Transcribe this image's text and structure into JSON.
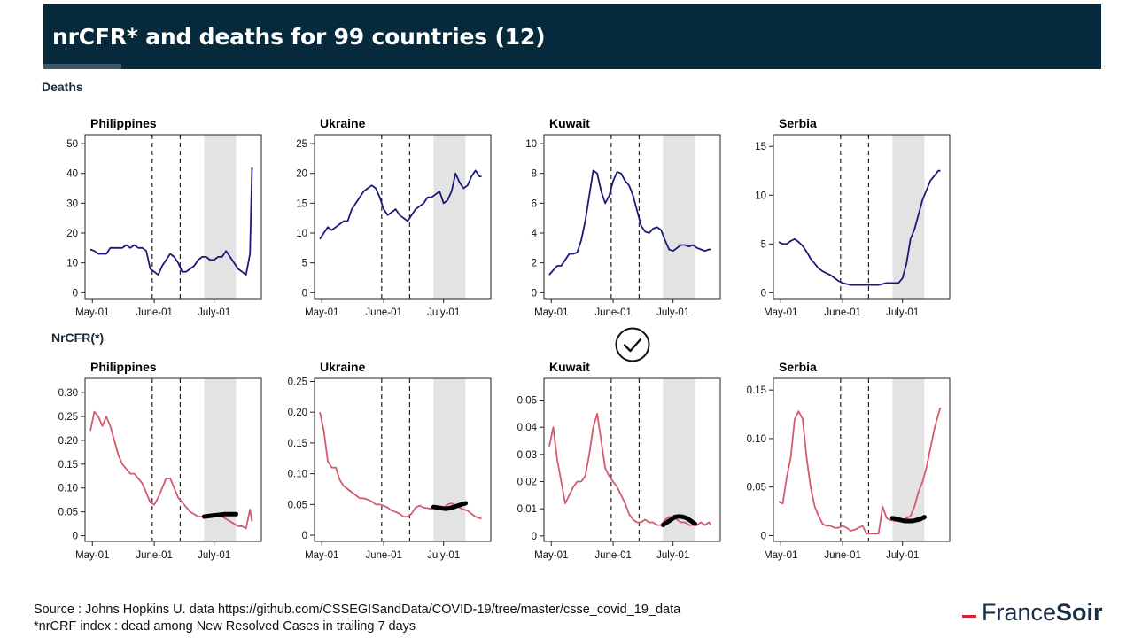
{
  "title": "nrCFR* and deaths for 99 countries (12)",
  "sections": {
    "deaths": "Deaths",
    "nrcfr": "NrCFR(*)"
  },
  "footer": {
    "source": "Source : Johns Hopkins U. data https://github.com/CSSEGISandData/COVID-19/tree/master/csse_covid_19_data",
    "note": "*nrCRF index : dead among New Resolved  Cases in trailing 7 days"
  },
  "logo": {
    "part1": "France",
    "part2": "Soir"
  },
  "checkmark": {
    "icon": "check-circle-icon",
    "position_note": "between Kuwait and Serbia rows"
  },
  "colors": {
    "deaths_line": "#1a1a7a",
    "nrcfr_line": "#d65a6e",
    "highlight": "#000000",
    "shade": "#e3e3e3",
    "banner": "#062a3c"
  },
  "chart_data": [
    {
      "type": "line",
      "panel": "deaths",
      "title": "Philippines",
      "xticks": [
        "May-01",
        "June-01",
        "July-01"
      ],
      "yticks": [
        0,
        10,
        20,
        30,
        40,
        50
      ],
      "ylim": [
        -2,
        53
      ],
      "day_range": [
        0,
        80
      ],
      "tick_days": [
        1,
        32,
        62
      ],
      "vlines": [
        31,
        45
      ],
      "shade": [
        57,
        73
      ],
      "series": [
        {
          "x": [
            0,
            2,
            4,
            6,
            8,
            10,
            12,
            14,
            16,
            18,
            20,
            22,
            24,
            26,
            28,
            30,
            32,
            34,
            36,
            38,
            40,
            42,
            44,
            46,
            48,
            50,
            52,
            54,
            56,
            58,
            60,
            62,
            64,
            66,
            68,
            70,
            72,
            74,
            76,
            78,
            80,
            81
          ],
          "y": [
            14.5,
            14,
            13,
            13,
            13,
            15,
            15,
            15,
            15,
            16,
            15,
            16,
            15,
            15,
            14,
            8,
            7,
            6,
            9,
            11,
            13,
            12,
            10,
            7,
            7,
            8,
            9,
            11,
            12,
            12,
            11,
            11,
            12,
            12,
            14,
            12,
            10,
            8,
            7,
            6,
            13,
            42
          ]
        }
      ]
    },
    {
      "type": "line",
      "panel": "deaths",
      "title": "Ukraine",
      "xticks": [
        "May-01",
        "June-01",
        "July-01"
      ],
      "yticks": [
        0,
        5,
        10,
        15,
        20,
        25
      ],
      "ylim": [
        -1,
        26.5
      ],
      "day_range": [
        0,
        80
      ],
      "tick_days": [
        1,
        32,
        62
      ],
      "vlines": [
        31,
        45
      ],
      "shade": [
        57,
        73
      ],
      "series": [
        {
          "x": [
            0,
            2,
            4,
            6,
            8,
            10,
            12,
            14,
            16,
            18,
            20,
            22,
            24,
            26,
            28,
            30,
            32,
            34,
            36,
            38,
            40,
            42,
            44,
            46,
            48,
            50,
            52,
            54,
            56,
            58,
            60,
            62,
            64,
            66,
            68,
            70,
            72,
            74,
            76,
            78,
            80,
            81
          ],
          "y": [
            9,
            10,
            11,
            10.5,
            11,
            11.5,
            12,
            12,
            14,
            15,
            16,
            17,
            17.5,
            18,
            17.5,
            16,
            14,
            13,
            13.5,
            14,
            13,
            12.5,
            12,
            13,
            14,
            14.5,
            15,
            16,
            16,
            16.5,
            17,
            15,
            15.5,
            17,
            20,
            18.5,
            17.5,
            18,
            19.5,
            20.5,
            19.5,
            19.5
          ]
        }
      ]
    },
    {
      "type": "line",
      "panel": "deaths",
      "title": "Kuwait",
      "xticks": [
        "May-01",
        "June-01",
        "July-01"
      ],
      "yticks": [
        0,
        2,
        4,
        6,
        8,
        10
      ],
      "ylim": [
        -0.4,
        10.6
      ],
      "day_range": [
        0,
        80
      ],
      "tick_days": [
        1,
        32,
        62
      ],
      "vlines": [
        31,
        45
      ],
      "shade": [
        57,
        73
      ],
      "series": [
        {
          "x": [
            0,
            2,
            4,
            6,
            8,
            10,
            12,
            14,
            16,
            18,
            20,
            22,
            24,
            26,
            28,
            30,
            32,
            34,
            36,
            38,
            40,
            42,
            44,
            46,
            48,
            50,
            52,
            54,
            56,
            58,
            60,
            62,
            64,
            66,
            68,
            70,
            72,
            74,
            76,
            78,
            80,
            81
          ],
          "y": [
            1.2,
            1.5,
            1.8,
            1.8,
            2.2,
            2.6,
            2.6,
            2.7,
            3.5,
            4.8,
            6.5,
            8.2,
            8,
            6.8,
            6,
            6.5,
            7.5,
            8.1,
            8,
            7.5,
            7.2,
            6.5,
            5.5,
            4.5,
            4.1,
            4,
            4.3,
            4.4,
            4.2,
            3.5,
            2.9,
            2.8,
            3,
            3.2,
            3.2,
            3.1,
            3.2,
            3,
            2.9,
            2.8,
            2.9,
            2.9
          ]
        }
      ]
    },
    {
      "type": "line",
      "panel": "deaths",
      "title": "Serbia",
      "xticks": [
        "May-01",
        "June-01",
        "July-01"
      ],
      "yticks": [
        0,
        5,
        10,
        15
      ],
      "ylim": [
        -0.6,
        16.2
      ],
      "day_range": [
        0,
        80
      ],
      "tick_days": [
        1,
        32,
        62
      ],
      "vlines": [
        31,
        45
      ],
      "shade": [
        57,
        73
      ],
      "series": [
        {
          "x": [
            0,
            2,
            4,
            6,
            8,
            10,
            12,
            14,
            16,
            18,
            20,
            22,
            24,
            26,
            28,
            30,
            32,
            34,
            36,
            38,
            40,
            42,
            44,
            46,
            48,
            50,
            52,
            54,
            56,
            58,
            60,
            62,
            64,
            66,
            68,
            70,
            72,
            74,
            76,
            78,
            80,
            81
          ],
          "y": [
            5.2,
            5,
            5,
            5.3,
            5.5,
            5.2,
            4.8,
            4.2,
            3.5,
            3,
            2.5,
            2.2,
            2,
            1.8,
            1.5,
            1.2,
            1,
            0.9,
            0.8,
            0.8,
            0.8,
            0.8,
            0.8,
            0.8,
            0.8,
            0.8,
            0.9,
            1,
            1,
            1,
            1,
            1.5,
            3,
            5.5,
            6.5,
            8,
            9.5,
            10.5,
            11.5,
            12,
            12.5,
            12.5
          ]
        }
      ]
    },
    {
      "type": "line",
      "panel": "nrcfr",
      "title": "Philippines",
      "xticks": [
        "May-01",
        "June-01",
        "July-01"
      ],
      "yticks": [
        0.0,
        0.05,
        0.1,
        0.15,
        0.2,
        0.25,
        0.3
      ],
      "ylim": [
        -0.012,
        0.33
      ],
      "day_range": [
        0,
        80
      ],
      "tick_days": [
        1,
        32,
        62
      ],
      "vlines": [
        31,
        45
      ],
      "shade": [
        57,
        73
      ],
      "series": [
        {
          "x": [
            0,
            2,
            4,
            6,
            8,
            10,
            12,
            14,
            16,
            18,
            20,
            22,
            24,
            26,
            28,
            30,
            32,
            34,
            36,
            38,
            40,
            42,
            44,
            46,
            48,
            50,
            52,
            54,
            56,
            58,
            60,
            62,
            64,
            66,
            68,
            70,
            72,
            74,
            76,
            78,
            80,
            81
          ],
          "y": [
            0.22,
            0.26,
            0.25,
            0.23,
            0.25,
            0.23,
            0.2,
            0.17,
            0.15,
            0.14,
            0.13,
            0.13,
            0.12,
            0.11,
            0.09,
            0.07,
            0.065,
            0.08,
            0.1,
            0.12,
            0.12,
            0.1,
            0.08,
            0.07,
            0.06,
            0.05,
            0.045,
            0.04,
            0.04,
            0.042,
            0.045,
            0.045,
            0.045,
            0.04,
            0.035,
            0.03,
            0.025,
            0.02,
            0.02,
            0.015,
            0.055,
            0.03
          ]
        }
      ],
      "highlight": {
        "x": [
          57,
          59,
          61,
          63,
          65,
          67,
          69,
          71,
          73
        ],
        "y": [
          0.04,
          0.041,
          0.042,
          0.043,
          0.044,
          0.045,
          0.045,
          0.045,
          0.045
        ]
      }
    },
    {
      "type": "line",
      "panel": "nrcfr",
      "title": "Ukraine",
      "xticks": [
        "May-01",
        "June-01",
        "July-01"
      ],
      "yticks": [
        0.0,
        0.05,
        0.1,
        0.15,
        0.2,
        0.25
      ],
      "ylim": [
        -0.01,
        0.255
      ],
      "day_range": [
        0,
        80
      ],
      "tick_days": [
        1,
        32,
        62
      ],
      "vlines": [
        31,
        45
      ],
      "shade": [
        57,
        73
      ],
      "series": [
        {
          "x": [
            0,
            2,
            4,
            6,
            8,
            10,
            12,
            14,
            16,
            18,
            20,
            22,
            24,
            26,
            28,
            30,
            32,
            34,
            36,
            38,
            40,
            42,
            44,
            46,
            48,
            50,
            52,
            54,
            56,
            58,
            60,
            62,
            64,
            66,
            68,
            70,
            72,
            74,
            76,
            78,
            80,
            81
          ],
          "y": [
            0.2,
            0.17,
            0.12,
            0.11,
            0.11,
            0.09,
            0.08,
            0.075,
            0.07,
            0.065,
            0.06,
            0.06,
            0.058,
            0.055,
            0.05,
            0.05,
            0.048,
            0.045,
            0.04,
            0.038,
            0.035,
            0.03,
            0.03,
            0.035,
            0.045,
            0.048,
            0.045,
            0.044,
            0.043,
            0.045,
            0.046,
            0.045,
            0.05,
            0.052,
            0.048,
            0.045,
            0.042,
            0.04,
            0.035,
            0.03,
            0.028,
            0.027
          ]
        }
      ],
      "highlight": {
        "x": [
          57,
          59,
          61,
          63,
          65,
          67,
          69,
          71,
          73
        ],
        "y": [
          0.046,
          0.045,
          0.044,
          0.043,
          0.044,
          0.046,
          0.048,
          0.05,
          0.052
        ]
      }
    },
    {
      "type": "line",
      "panel": "nrcfr",
      "title": "Kuwait",
      "xticks": [
        "May-01",
        "June-01",
        "July-01"
      ],
      "yticks": [
        0.0,
        0.01,
        0.02,
        0.03,
        0.04,
        0.05
      ],
      "ylim": [
        -0.002,
        0.058
      ],
      "day_range": [
        0,
        80
      ],
      "tick_days": [
        1,
        32,
        62
      ],
      "vlines": [
        31,
        45
      ],
      "shade": [
        57,
        73
      ],
      "series": [
        {
          "x": [
            0,
            2,
            4,
            6,
            8,
            10,
            12,
            14,
            16,
            18,
            20,
            22,
            24,
            26,
            28,
            30,
            32,
            34,
            36,
            38,
            40,
            42,
            44,
            46,
            48,
            50,
            52,
            54,
            56,
            58,
            60,
            62,
            64,
            66,
            68,
            70,
            72,
            74,
            76,
            78,
            80,
            81
          ],
          "y": [
            0.033,
            0.04,
            0.028,
            0.02,
            0.012,
            0.015,
            0.018,
            0.02,
            0.02,
            0.022,
            0.03,
            0.04,
            0.045,
            0.035,
            0.025,
            0.022,
            0.02,
            0.018,
            0.015,
            0.012,
            0.008,
            0.006,
            0.005,
            0.005,
            0.006,
            0.005,
            0.005,
            0.004,
            0.004,
            0.006,
            0.007,
            0.007,
            0.006,
            0.005,
            0.005,
            0.004,
            0.004,
            0.004,
            0.005,
            0.004,
            0.005,
            0.004
          ]
        }
      ],
      "highlight": {
        "x": [
          57,
          59,
          61,
          63,
          65,
          67,
          69,
          71,
          73
        ],
        "y": [
          0.004,
          0.005,
          0.006,
          0.007,
          0.0072,
          0.007,
          0.0065,
          0.0055,
          0.0045
        ]
      }
    },
    {
      "type": "line",
      "panel": "nrcfr",
      "title": "Serbia",
      "xticks": [
        "May-01",
        "June-01",
        "July-01"
      ],
      "yticks": [
        0.0,
        0.05,
        0.1,
        0.15
      ],
      "ylim": [
        -0.006,
        0.162
      ],
      "day_range": [
        0,
        80
      ],
      "tick_days": [
        1,
        32,
        62
      ],
      "vlines": [
        31,
        45
      ],
      "shade": [
        57,
        73
      ],
      "series": [
        {
          "x": [
            0,
            2,
            4,
            6,
            8,
            10,
            12,
            14,
            16,
            18,
            20,
            22,
            24,
            26,
            28,
            30,
            32,
            34,
            36,
            38,
            40,
            42,
            44,
            46,
            48,
            50,
            52,
            54,
            56,
            58,
            60,
            62,
            64,
            66,
            68,
            70,
            72,
            74,
            76,
            78,
            80,
            81
          ],
          "y": [
            0.035,
            0.033,
            0.06,
            0.08,
            0.12,
            0.128,
            0.12,
            0.08,
            0.05,
            0.03,
            0.02,
            0.012,
            0.01,
            0.01,
            0.008,
            0.008,
            0.01,
            0.008,
            0.005,
            0.006,
            0.008,
            0.01,
            0.002,
            0.002,
            0.002,
            0.002,
            0.03,
            0.018,
            0.016,
            0.015,
            0.015,
            0.016,
            0.018,
            0.02,
            0.03,
            0.045,
            0.055,
            0.07,
            0.09,
            0.11,
            0.125,
            0.132
          ]
        }
      ],
      "highlight": {
        "x": [
          57,
          59,
          61,
          63,
          65,
          67,
          69,
          71,
          73
        ],
        "y": [
          0.018,
          0.017,
          0.016,
          0.015,
          0.015,
          0.015,
          0.016,
          0.017,
          0.019
        ]
      }
    }
  ]
}
